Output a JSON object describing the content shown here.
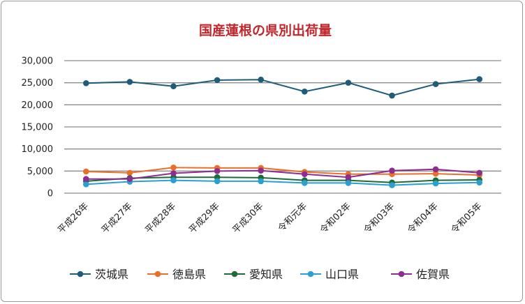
{
  "chart_data": {
    "type": "line",
    "title": "国産蓮根の県別出荷量",
    "xlabel": "",
    "ylabel": "",
    "ylim": [
      0,
      30000
    ],
    "yticks": [
      0,
      5000,
      10000,
      15000,
      20000,
      25000,
      30000
    ],
    "ytick_labels": [
      "0",
      "5,000",
      "10,000",
      "15,000",
      "20,000",
      "25,000",
      "30,000"
    ],
    "grid": true,
    "legend_position": "bottom",
    "categories": [
      "平成26年",
      "平成27年",
      "平成28年",
      "平成29年",
      "平成30年",
      "令和元年",
      "令和02年",
      "令和03年",
      "令和04年",
      "令和05年"
    ],
    "series": [
      {
        "name": "茨城県",
        "color": "#1f5c7a",
        "values": [
          24900,
          25200,
          24200,
          25600,
          25700,
          23000,
          25000,
          22100,
          24700,
          25800
        ]
      },
      {
        "name": "徳島県",
        "color": "#e8702a",
        "values": [
          4900,
          4600,
          5800,
          5700,
          5700,
          4800,
          4300,
          4300,
          4400,
          4100
        ]
      },
      {
        "name": "愛知県",
        "color": "#1e6b3a",
        "values": [
          2700,
          3400,
          3600,
          3600,
          3500,
          2900,
          2900,
          2400,
          2900,
          3000
        ]
      },
      {
        "name": "山口県",
        "color": "#2a9fd0",
        "values": [
          2000,
          2600,
          2900,
          2700,
          2700,
          2300,
          2300,
          1800,
          2200,
          2400
        ]
      },
      {
        "name": "佐賀県",
        "color": "#8e2c90",
        "values": [
          3200,
          3200,
          4500,
          5000,
          5100,
          4300,
          3600,
          5100,
          5400,
          4600
        ]
      }
    ]
  }
}
